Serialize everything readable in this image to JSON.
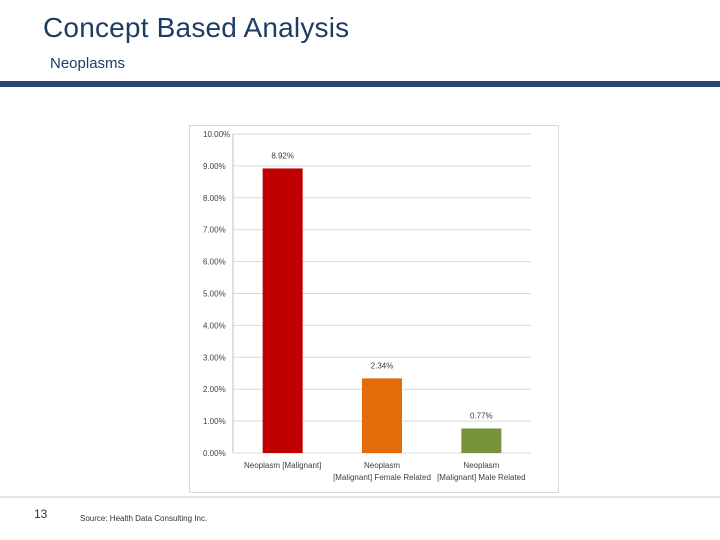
{
  "slide": {
    "title": "Concept Based Analysis",
    "subtitle": "Neoplasms",
    "page_number": "13",
    "source": "Source: Health Data Consulting Inc."
  },
  "chart_data": {
    "type": "bar",
    "title": "",
    "xlabel": "",
    "ylabel": "",
    "ylim": [
      0,
      10
    ],
    "y_ticks": [
      "0.00%",
      "1.00%",
      "2.00%",
      "3.00%",
      "4.00%",
      "5.00%",
      "6.00%",
      "7.00%",
      "8.00%",
      "9.00%",
      "10.00%"
    ],
    "grid": true,
    "categories": [
      [
        "Neoplasm [Malignant]"
      ],
      [
        "Neoplasm",
        "[Malignant] Female Related"
      ],
      [
        "Neoplasm",
        "[Malignant] Male Related"
      ]
    ],
    "values": [
      8.92,
      2.34,
      0.77
    ],
    "data_labels": [
      "8.92%",
      "2.34%",
      "0.77%"
    ],
    "colors": [
      "#c00000",
      "#e46c0a",
      "#77933c"
    ]
  }
}
